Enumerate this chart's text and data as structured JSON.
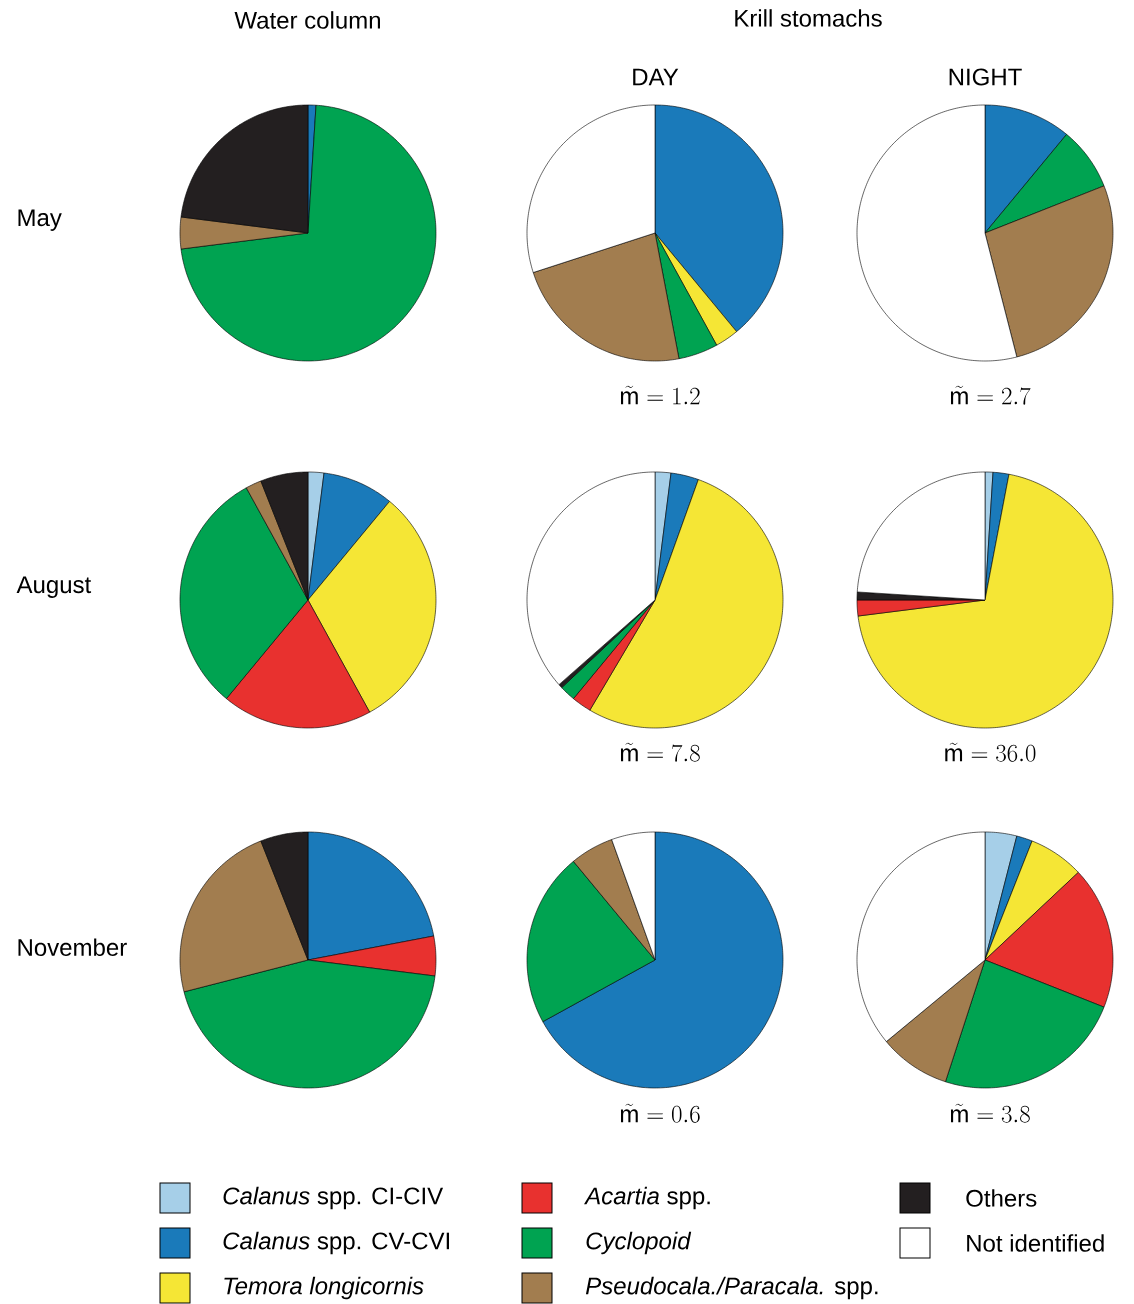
{
  "chart_data": [
    {
      "type": "pie",
      "title": "Water column",
      "ylabel": "May",
      "categories": [
        null,
        null,
        null,
        null
      ],
      "values": [
        1,
        72,
        4,
        23
      ],
      "colors": [
        "#1a7aba",
        "#00a351",
        "#a27d4f",
        "#231f20"
      ]
    },
    {
      "type": "pie",
      "title": "DAY",
      "annotations": [
        "Krill stomachs"
      ],
      "xlabel": "\\tilde{\\mathrm{m}}=1.2",
      "categories": [
        null,
        null,
        null,
        null,
        null
      ],
      "values": [
        39,
        3,
        5,
        23,
        30
      ],
      "colors": [
        "#1a7aba",
        "#f5e635",
        "#00a351",
        "#a27d4f",
        "#ffffff"
      ]
    },
    {
      "type": "pie",
      "title": "NIGHT",
      "xlabel": "\\tilde{\\mathrm{m}}=2.7",
      "categories": [
        null,
        null,
        null,
        null
      ],
      "values": [
        11,
        8,
        27,
        54
      ],
      "colors": [
        "#1a7aba",
        "#00a351",
        "#a27d4f",
        "#ffffff"
      ]
    },
    {
      "type": "pie",
      "ylabel": "August",
      "categories": [
        null,
        null,
        null,
        null,
        null,
        null,
        null
      ],
      "values": [
        2,
        9,
        31,
        19,
        31,
        2,
        6
      ],
      "colors": [
        "#a6cfe8",
        "#1a7aba",
        "#f5e635",
        "#e8312f",
        "#00a351",
        "#a27d4f",
        "#231f20"
      ]
    },
    {
      "type": "pie",
      "xlabel": "\\tilde{\\mathrm{m}}=7.8",
      "categories": [
        null,
        null,
        null,
        null,
        null,
        null,
        null
      ],
      "values": [
        2,
        3.5,
        53,
        2.5,
        2,
        0.5,
        36.5
      ],
      "colors": [
        "#a6cfe8",
        "#1a7aba",
        "#f5e635",
        "#e8312f",
        "#00a351",
        "#231f20",
        "#ffffff"
      ]
    },
    {
      "type": "pie",
      "xlabel": "\\tilde{\\mathrm{m}}=36.0",
      "categories": [
        null,
        null,
        null,
        null,
        null,
        null
      ],
      "values": [
        1,
        2,
        70,
        2,
        1,
        24
      ],
      "colors": [
        "#a6cfe8",
        "#1a7aba",
        "#f5e635",
        "#e8312f",
        "#231f20",
        "#ffffff"
      ]
    },
    {
      "type": "pie",
      "ylabel": "November",
      "categories": [
        null,
        null,
        null,
        null,
        null
      ],
      "values": [
        22,
        5,
        44,
        23,
        6
      ],
      "colors": [
        "#1a7aba",
        "#e8312f",
        "#00a351",
        "#a27d4f",
        "#231f20"
      ]
    },
    {
      "type": "pie",
      "xlabel": "\\tilde{\\mathrm{m}}=0.6",
      "categories": [
        null,
        null,
        null,
        null
      ],
      "values": [
        67,
        22,
        5.5,
        5.5
      ],
      "colors": [
        "#1a7aba",
        "#00a351",
        "#a27d4f",
        "#ffffff"
      ]
    },
    {
      "type": "pie",
      "xlabel": "\\tilde{\\mathrm{m}}=3.8",
      "categories": [
        null,
        null,
        null,
        null,
        null,
        null,
        null
      ],
      "values": [
        4,
        2,
        7,
        18,
        24,
        9,
        36
      ],
      "colors": [
        "#a6cfe8",
        "#1a7aba",
        "#f5e635",
        "#e8312f",
        "#00a351",
        "#a27d4f",
        "#ffffff"
      ]
    },
    {
      "type": "other",
      "categories": [
        "*Calanus* spp. CI-CIV",
        "*Calanus* spp. CV-CVI",
        "*Temora longicornis*",
        "*Acartia* spp.",
        "*Cyclopoid*",
        "*Pseudocala./Paracala.* spp.",
        "Others",
        "Not identified"
      ],
      "colors": [
        "#a6cfe8",
        "#1a7aba",
        "#f5e635",
        "#e8312f",
        "#00a351",
        "#a27d4f",
        "#231f20",
        "#ffffff"
      ]
    }
  ]
}
